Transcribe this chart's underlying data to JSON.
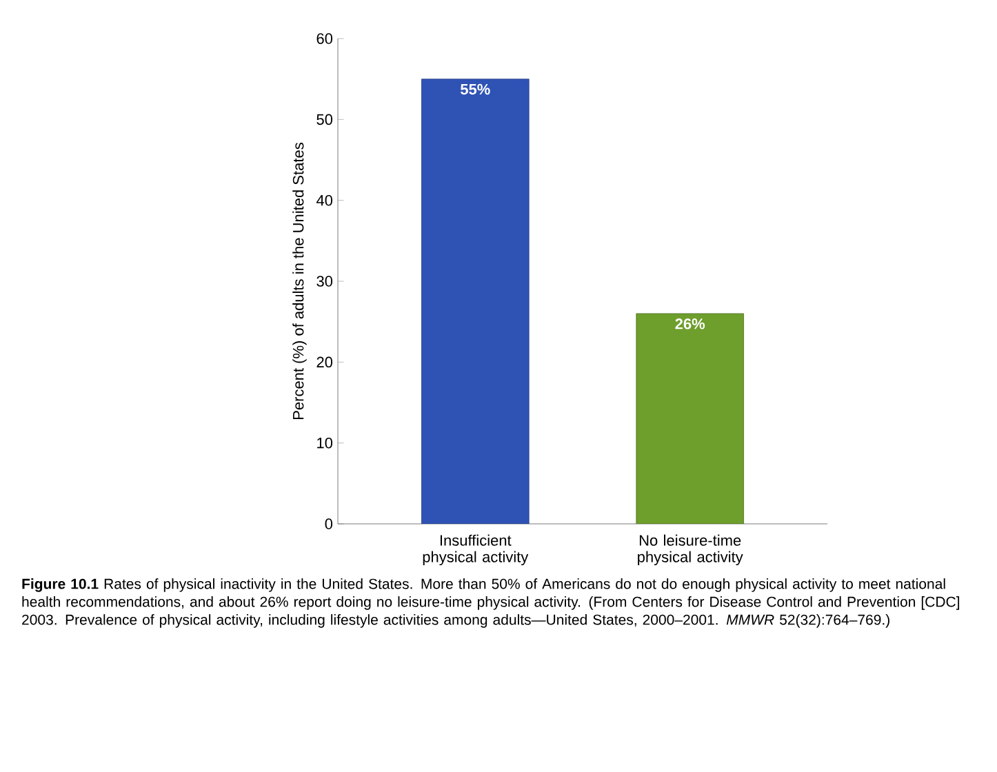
{
  "chart_data": {
    "type": "bar",
    "categories": [
      "Insufficient physical activity",
      "No leisure-time physical activity"
    ],
    "values": [
      55,
      26
    ],
    "colors": [
      "#2f52b5",
      "#6e9e2c"
    ],
    "value_labels": [
      "55%",
      "26%"
    ],
    "ylabel": "Percent (%) of adults in the United States",
    "ylim": [
      0,
      60
    ],
    "yticks": [
      0,
      10,
      20,
      30,
      40,
      50,
      60
    ],
    "annotations": [
      "**Figure 10.1**   Rates of physical inactivity in the United States. More than 50% of Americans do not do enough physical activity to meet national health recommendations, and about 26% report doing no leisure-time physical activity. (From Centers for Disease Control and Prevention [CDC] 2003. Prevalence of physical activity, including lifestyle activities among adults—United States, 2000–2001. *MMWR* 52(32):764–769.)"
    ]
  }
}
